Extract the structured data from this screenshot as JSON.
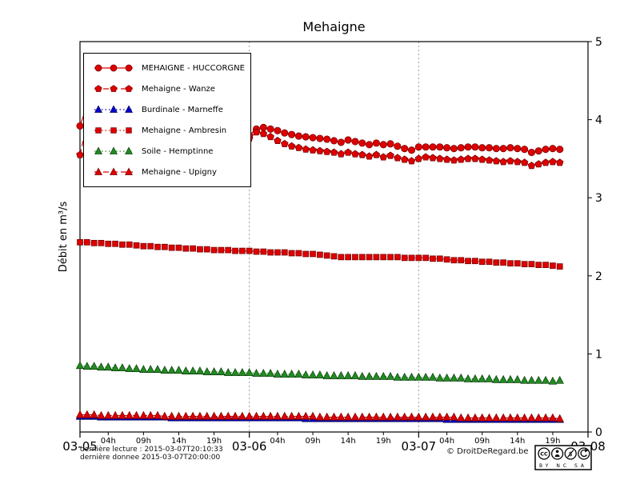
{
  "title": "Mehaigne",
  "footer": {
    "last_reading": "dernière lecture : 2015-03-07T20:10:33",
    "last_data": "dernière donnee  2015-03-07T20:00:00",
    "copyright": "© DroitDeRegard.be",
    "license_cc": "CC",
    "license": "BY NC SA"
  },
  "chart_data": {
    "type": "line",
    "title": "Mehaigne",
    "ylabel": "Débit en m³/s",
    "ylim": [
      0,
      5
    ],
    "yticks": [
      0,
      1,
      2,
      3,
      4,
      5
    ],
    "x_axis": {
      "range_hours": [
        0,
        72
      ],
      "major_ticks": [
        {
          "hour": 0,
          "label": "03-05"
        },
        {
          "hour": 24,
          "label": "03-06"
        },
        {
          "hour": 48,
          "label": "03-07"
        },
        {
          "hour": 72,
          "label": "03-08"
        }
      ],
      "minor_hours": [
        4,
        9,
        14,
        19
      ],
      "minor_labels": [
        "04h",
        "09h",
        "14h",
        "19h"
      ],
      "day_starts": [
        0,
        24,
        48
      ]
    },
    "grid": {
      "vertical_days": [
        24,
        48
      ]
    },
    "legend_position": "upper-left",
    "series": [
      {
        "name": "MEHAIGNE - HUCCORGNE",
        "color": "#dd0000",
        "edge": "#6f0000",
        "marker": "circle",
        "line_style": "solid",
        "x_start": 0,
        "x_step": 1,
        "values": [
          3.92,
          4.18,
          4.02,
          3.95,
          3.9,
          3.88,
          3.86,
          3.85,
          3.83,
          3.82,
          3.81,
          3.8,
          3.79,
          3.78,
          3.77,
          3.76,
          3.75,
          3.74,
          3.74,
          3.73,
          3.73,
          3.74,
          3.75,
          3.77,
          3.8,
          3.88,
          3.9,
          3.88,
          3.86,
          3.83,
          3.81,
          3.79,
          3.78,
          3.77,
          3.76,
          3.75,
          3.73,
          3.71,
          3.74,
          3.72,
          3.7,
          3.68,
          3.7,
          3.68,
          3.69,
          3.66,
          3.63,
          3.61,
          3.65,
          3.65,
          3.65,
          3.65,
          3.64,
          3.63,
          3.64,
          3.65,
          3.65,
          3.64,
          3.64,
          3.63,
          3.63,
          3.64,
          3.63,
          3.62,
          3.58,
          3.6,
          3.62,
          3.63,
          3.62
        ]
      },
      {
        "name": "Mehaigne - Wanze",
        "color": "#dd0000",
        "edge": "#6f0000",
        "marker": "pentagon",
        "line_style": "dashed",
        "x_start": 0,
        "x_step": 1,
        "values": [
          3.55,
          3.95,
          3.88,
          3.82,
          3.78,
          3.76,
          3.74,
          3.73,
          3.72,
          3.71,
          3.7,
          3.7,
          3.69,
          3.69,
          3.68,
          3.68,
          3.67,
          3.67,
          3.66,
          3.66,
          3.67,
          3.68,
          3.7,
          3.73,
          3.76,
          3.84,
          3.82,
          3.78,
          3.73,
          3.69,
          3.66,
          3.64,
          3.62,
          3.61,
          3.6,
          3.59,
          3.58,
          3.56,
          3.58,
          3.56,
          3.55,
          3.53,
          3.55,
          3.52,
          3.54,
          3.51,
          3.49,
          3.47,
          3.5,
          3.52,
          3.51,
          3.5,
          3.49,
          3.48,
          3.49,
          3.5,
          3.5,
          3.49,
          3.48,
          3.47,
          3.46,
          3.47,
          3.46,
          3.45,
          3.41,
          3.43,
          3.45,
          3.46,
          3.45
        ]
      },
      {
        "name": "Burdinale - Marneffe",
        "color": "#0000cc",
        "edge": "#000055",
        "marker": "triangle",
        "line_style": "dotted",
        "x_start": 0,
        "x_step": 1,
        "values": [
          0.2,
          0.2,
          0.2,
          0.19,
          0.19,
          0.19,
          0.19,
          0.19,
          0.19,
          0.19,
          0.19,
          0.19,
          0.19,
          0.18,
          0.18,
          0.18,
          0.18,
          0.18,
          0.18,
          0.18,
          0.18,
          0.18,
          0.18,
          0.18,
          0.18,
          0.18,
          0.18,
          0.18,
          0.18,
          0.18,
          0.18,
          0.18,
          0.17,
          0.17,
          0.17,
          0.17,
          0.17,
          0.17,
          0.17,
          0.17,
          0.17,
          0.17,
          0.17,
          0.17,
          0.17,
          0.17,
          0.17,
          0.17,
          0.17,
          0.17,
          0.17,
          0.17,
          0.16,
          0.16,
          0.16,
          0.16,
          0.16,
          0.16,
          0.16,
          0.16,
          0.16,
          0.16,
          0.16,
          0.16,
          0.16,
          0.16,
          0.16,
          0.16,
          0.16
        ]
      },
      {
        "name": "Mehaigne - Ambresin",
        "color": "#dd0000",
        "edge": "#6f0000",
        "marker": "square",
        "line_style": "dotted",
        "x_start": 0,
        "x_step": 1,
        "values": [
          2.43,
          2.43,
          2.42,
          2.42,
          2.41,
          2.41,
          2.4,
          2.4,
          2.39,
          2.38,
          2.38,
          2.37,
          2.37,
          2.36,
          2.36,
          2.35,
          2.35,
          2.34,
          2.34,
          2.33,
          2.33,
          2.33,
          2.32,
          2.32,
          2.32,
          2.31,
          2.31,
          2.3,
          2.3,
          2.3,
          2.29,
          2.29,
          2.28,
          2.28,
          2.27,
          2.26,
          2.25,
          2.24,
          2.24,
          2.24,
          2.24,
          2.24,
          2.24,
          2.24,
          2.24,
          2.24,
          2.23,
          2.23,
          2.23,
          2.23,
          2.22,
          2.22,
          2.21,
          2.2,
          2.2,
          2.19,
          2.19,
          2.18,
          2.18,
          2.17,
          2.17,
          2.16,
          2.16,
          2.15,
          2.15,
          2.14,
          2.14,
          2.13,
          2.12
        ]
      },
      {
        "name": "Soile - Hemptinne",
        "color": "#228b22",
        "edge": "#0a3a0a",
        "marker": "triangle",
        "line_style": "dotted",
        "x_start": 0,
        "x_step": 1,
        "values": [
          0.85,
          0.84,
          0.84,
          0.83,
          0.83,
          0.82,
          0.82,
          0.81,
          0.81,
          0.8,
          0.8,
          0.8,
          0.79,
          0.79,
          0.79,
          0.78,
          0.78,
          0.78,
          0.77,
          0.77,
          0.77,
          0.76,
          0.76,
          0.76,
          0.76,
          0.75,
          0.75,
          0.75,
          0.74,
          0.74,
          0.74,
          0.74,
          0.73,
          0.73,
          0.73,
          0.72,
          0.72,
          0.72,
          0.72,
          0.72,
          0.71,
          0.71,
          0.71,
          0.71,
          0.71,
          0.7,
          0.7,
          0.7,
          0.7,
          0.7,
          0.7,
          0.69,
          0.69,
          0.69,
          0.69,
          0.68,
          0.68,
          0.68,
          0.68,
          0.67,
          0.67,
          0.67,
          0.67,
          0.66,
          0.66,
          0.66,
          0.66,
          0.65,
          0.66
        ]
      },
      {
        "name": "Mehaigne - Upigny",
        "color": "#dd0000",
        "edge": "#6f0000",
        "marker": "triangle",
        "line_style": "dashed",
        "x_start": 0,
        "x_step": 1,
        "values": [
          0.22,
          0.22,
          0.22,
          0.21,
          0.21,
          0.21,
          0.21,
          0.21,
          0.21,
          0.21,
          0.21,
          0.21,
          0.2,
          0.2,
          0.2,
          0.2,
          0.2,
          0.2,
          0.2,
          0.2,
          0.2,
          0.2,
          0.2,
          0.2,
          0.2,
          0.2,
          0.2,
          0.2,
          0.2,
          0.2,
          0.2,
          0.2,
          0.2,
          0.2,
          0.19,
          0.19,
          0.19,
          0.19,
          0.19,
          0.19,
          0.19,
          0.19,
          0.19,
          0.19,
          0.19,
          0.19,
          0.19,
          0.19,
          0.19,
          0.19,
          0.19,
          0.19,
          0.19,
          0.19,
          0.18,
          0.18,
          0.18,
          0.18,
          0.18,
          0.18,
          0.18,
          0.18,
          0.18,
          0.18,
          0.18,
          0.18,
          0.18,
          0.18,
          0.17
        ]
      }
    ]
  }
}
